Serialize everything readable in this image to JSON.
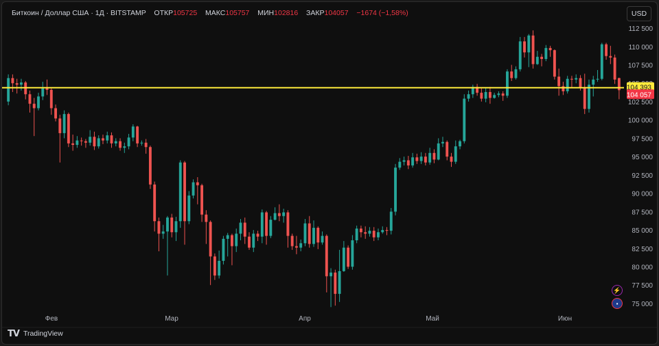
{
  "legend": {
    "symbol": "Биткоин / Доллар США · 1Д · BITSTAMP",
    "open_label": "ОТКР",
    "open": "105725",
    "high_label": "МАКС",
    "high": "105757",
    "low_label": "МИН",
    "low": "102816",
    "close_label": "ЗАКР",
    "close": "104057",
    "change": "−1674 (−1,58%)"
  },
  "currency_button": "USD",
  "branding": "TradingView",
  "price_axis": {
    "labels": [
      "112 500",
      "110 000",
      "107 500",
      "105 000",
      "102 500",
      "100 000",
      "97 500",
      "95 000",
      "92 500",
      "90 000",
      "87 500",
      "85 000",
      "82 500",
      "80 000",
      "77 500",
      "75 000"
    ],
    "hline_label": "104 393",
    "last_price_label": "104 057"
  },
  "time_axis": {
    "labels": [
      "Фев",
      "Мар",
      "Апр",
      "Май",
      "Июн"
    ]
  },
  "colors": {
    "up": "#26a69a",
    "down": "#ef5350",
    "hline": "#ffeb3b",
    "last": "#f23645",
    "bg": "#0f0f0f"
  },
  "icons": [
    "bolt-icon",
    "flag-icon"
  ],
  "chart_data": {
    "type": "candlestick",
    "ylim": [
      73500,
      114000
    ],
    "horizontal_line": 104393,
    "last_price": 104057,
    "candles": [
      [
        102500,
        105700,
        106200,
        102000
      ],
      [
        105700,
        105000,
        106200,
        103800
      ],
      [
        105000,
        104800,
        105600,
        103600
      ],
      [
        104800,
        105100,
        105600,
        104000
      ],
      [
        105100,
        103500,
        105300,
        102800
      ],
      [
        103500,
        102200,
        104000,
        101000
      ],
      [
        102200,
        101600,
        103000,
        97800
      ],
      [
        101600,
        103200,
        103700,
        101300
      ],
      [
        103200,
        104300,
        105200,
        102700
      ],
      [
        104300,
        104100,
        105500,
        103400
      ],
      [
        104100,
        101600,
        104300,
        100700
      ],
      [
        101600,
        100200,
        102100,
        99800
      ],
      [
        100200,
        98200,
        100700,
        94200
      ],
      [
        98200,
        100800,
        101300,
        97500
      ],
      [
        100800,
        96800,
        101000,
        96300
      ],
      [
        96800,
        96600,
        98000,
        95800
      ],
      [
        96600,
        97200,
        97800,
        96200
      ],
      [
        97200,
        97100,
        97600,
        96500
      ],
      [
        97100,
        96900,
        97400,
        96200
      ],
      [
        96900,
        97700,
        98600,
        96500
      ],
      [
        97700,
        96400,
        98400,
        95900
      ],
      [
        96400,
        97500,
        97900,
        96100
      ],
      [
        97500,
        97200,
        98000,
        96700
      ],
      [
        97200,
        97900,
        98400,
        96800
      ],
      [
        97900,
        96800,
        98300,
        96200
      ],
      [
        96800,
        97100,
        97500,
        96400
      ],
      [
        97100,
        96200,
        97500,
        95800
      ],
      [
        96200,
        96400,
        96900,
        95500
      ],
      [
        96400,
        97600,
        98100,
        96000
      ],
      [
        97600,
        99100,
        99400,
        97100
      ],
      [
        99100,
        96800,
        99200,
        96300
      ],
      [
        96800,
        96900,
        97200,
        96500
      ],
      [
        96900,
        96300,
        97400,
        95400
      ],
      [
        96300,
        91200,
        96500,
        90600
      ],
      [
        91200,
        86200,
        91600,
        84800
      ],
      [
        86200,
        84500,
        86700,
        82100
      ],
      [
        84500,
        84800,
        85700,
        83800
      ],
      [
        84800,
        86700,
        86900,
        78800
      ],
      [
        86700,
        84700,
        87200,
        84000
      ],
      [
        84700,
        86200,
        86800,
        83500
      ],
      [
        86200,
        94200,
        94500,
        85300
      ],
      [
        94200,
        86200,
        94400,
        83000
      ],
      [
        86200,
        89700,
        90300,
        85800
      ],
      [
        89700,
        91500,
        91900,
        89300
      ],
      [
        91500,
        91100,
        92200,
        88500
      ],
      [
        91100,
        87100,
        91300,
        86100
      ],
      [
        87100,
        86100,
        87700,
        83100
      ],
      [
        86100,
        81400,
        86300,
        77500
      ],
      [
        81400,
        78800,
        81800,
        78200
      ],
      [
        78800,
        80800,
        82200,
        78400
      ],
      [
        80800,
        83800,
        84200,
        80300
      ],
      [
        83800,
        84300,
        84600,
        81400
      ],
      [
        84300,
        82800,
        84500,
        80200
      ],
      [
        82800,
        84500,
        85200,
        82000
      ],
      [
        84500,
        86000,
        86500,
        83600
      ],
      [
        86000,
        84100,
        86700,
        83100
      ],
      [
        84100,
        82600,
        84700,
        82300
      ],
      [
        82600,
        84500,
        85000,
        82000
      ],
      [
        84500,
        84100,
        84900,
        83500
      ],
      [
        84100,
        87400,
        87800,
        83200
      ],
      [
        87400,
        84200,
        87600,
        83000
      ],
      [
        84200,
        86400,
        86900,
        83900
      ],
      [
        86400,
        87300,
        88100,
        86300
      ],
      [
        87300,
        86900,
        88500,
        86200
      ],
      [
        86900,
        87400,
        87900,
        86000
      ],
      [
        87400,
        84200,
        87700,
        82600
      ],
      [
        84200,
        82800,
        84500,
        82300
      ],
      [
        82800,
        82600,
        84200,
        81700
      ],
      [
        82600,
        83200,
        83700,
        82100
      ],
      [
        83200,
        85900,
        86500,
        82800
      ],
      [
        85900,
        83100,
        86900,
        82600
      ],
      [
        83100,
        85300,
        86300,
        82700
      ],
      [
        85300,
        83300,
        85500,
        82400
      ],
      [
        83300,
        84200,
        84800,
        83000
      ],
      [
        84200,
        78700,
        84400,
        76500
      ],
      [
        78700,
        79200,
        79800,
        74500
      ],
      [
        79200,
        76300,
        79600,
        74700
      ],
      [
        76300,
        79400,
        82300,
        75200
      ],
      [
        79400,
        82600,
        83500,
        79300
      ],
      [
        82600,
        80000,
        82900,
        79700
      ],
      [
        80000,
        83600,
        84300,
        79600
      ],
      [
        83600,
        85200,
        85600,
        83200
      ],
      [
        85200,
        84700,
        85600,
        84000
      ],
      [
        84700,
        84500,
        85500,
        83800
      ],
      [
        84500,
        84900,
        85400,
        84100
      ],
      [
        84900,
        84000,
        85400,
        83500
      ],
      [
        84000,
        84700,
        85200,
        83600
      ],
      [
        84700,
        85000,
        85500,
        84500
      ],
      [
        85000,
        84900,
        85400,
        84300
      ],
      [
        84900,
        87500,
        88000,
        84400
      ],
      [
        87500,
        93500,
        94000,
        87000
      ],
      [
        93500,
        94300,
        94800,
        93200
      ],
      [
        94300,
        94500,
        95000,
        93800
      ],
      [
        94500,
        93800,
        95100,
        93300
      ],
      [
        93800,
        94900,
        95500,
        93500
      ],
      [
        94900,
        94400,
        95400,
        94000
      ],
      [
        94400,
        95000,
        95600,
        94000
      ],
      [
        95000,
        94200,
        95500,
        93800
      ],
      [
        94200,
        95500,
        96200,
        93900
      ],
      [
        95500,
        94600,
        96000,
        94100
      ],
      [
        94600,
        96800,
        97500,
        94500
      ],
      [
        96800,
        97000,
        97700,
        96300
      ],
      [
        97000,
        95000,
        97200,
        94500
      ],
      [
        95000,
        94300,
        95500,
        93600
      ],
      [
        94300,
        96400,
        97200,
        94000
      ],
      [
        96400,
        97100,
        97300,
        96000
      ],
      [
        97100,
        102900,
        103500,
        96800
      ],
      [
        102900,
        103500,
        104000,
        102500
      ],
      [
        103500,
        104500,
        104800,
        103000
      ],
      [
        104500,
        103700,
        104900,
        103300
      ],
      [
        103700,
        102900,
        104300,
        102500
      ],
      [
        102900,
        103800,
        104400,
        102400
      ],
      [
        103800,
        103000,
        104500,
        102200
      ],
      [
        103000,
        103400,
        103700,
        102900
      ],
      [
        103400,
        103600,
        103900,
        103100
      ],
      [
        103600,
        103300,
        103900,
        102600
      ],
      [
        103300,
        106600,
        106900,
        103000
      ],
      [
        106600,
        105700,
        107500,
        105300
      ],
      [
        105700,
        106900,
        107300,
        105500
      ],
      [
        106900,
        110700,
        111300,
        106600
      ],
      [
        110700,
        109200,
        111300,
        108500
      ],
      [
        109200,
        111500,
        111700,
        107200
      ],
      [
        111500,
        107600,
        112200,
        107000
      ],
      [
        107600,
        108600,
        109400,
        107500
      ],
      [
        108600,
        108300,
        109000,
        107300
      ],
      [
        108300,
        109800,
        110200,
        108000
      ],
      [
        109800,
        109500,
        110100,
        108600
      ],
      [
        109500,
        105900,
        109600,
        105500
      ],
      [
        105900,
        104600,
        107000,
        103300
      ],
      [
        104600,
        103900,
        105200,
        103400
      ],
      [
        103900,
        105600,
        106000,
        103600
      ],
      [
        105600,
        105500,
        106000,
        104400
      ],
      [
        105500,
        105700,
        106200,
        105000
      ],
      [
        105700,
        104400,
        106100,
        104000
      ],
      [
        104400,
        101500,
        106300,
        100800
      ],
      [
        101500,
        104800,
        105500,
        101000
      ],
      [
        104800,
        105500,
        106000,
        103200
      ],
      [
        105500,
        105600,
        106800,
        105200
      ],
      [
        105600,
        110300,
        110500,
        105400
      ],
      [
        110300,
        108700,
        110500,
        108200
      ],
      [
        108700,
        108500,
        110100,
        107600
      ],
      [
        108500,
        105500,
        108900,
        104900
      ],
      [
        105700,
        104057,
        105757,
        102816
      ]
    ]
  }
}
